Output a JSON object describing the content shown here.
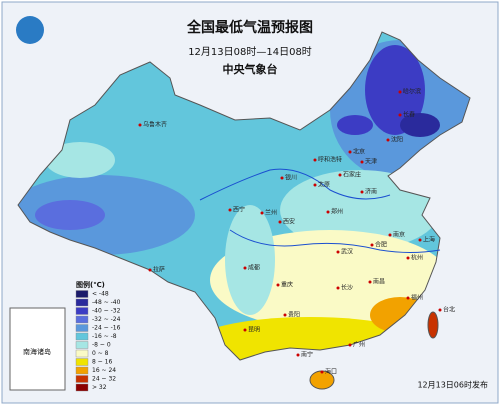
{
  "header": {
    "title": "全国最低气温预报图",
    "period": "12月13日08时—14日08时",
    "issuer": "中央气象台"
  },
  "legend": {
    "title": "图例(℃)",
    "items": [
      {
        "label": "< -48",
        "color": "#1c1c6a"
      },
      {
        "label": "-48 ~ -40",
        "color": "#2a2a9c"
      },
      {
        "label": "-40 ~ -32",
        "color": "#3c3cc4"
      },
      {
        "label": "-32 ~ -24",
        "color": "#5a6ede"
      },
      {
        "label": "-24 ~ -16",
        "color": "#5a98dc"
      },
      {
        "label": "-16 ~ -8",
        "color": "#62c6dc"
      },
      {
        "label": "-8 ~ 0",
        "color": "#a6e6e4"
      },
      {
        "label": "0 ~ 8",
        "color": "#fafac6"
      },
      {
        "label": "8 ~ 16",
        "color": "#f0e400"
      },
      {
        "label": "16 ~ 24",
        "color": "#f2a200"
      },
      {
        "label": "24 ~ 32",
        "color": "#c83200"
      },
      {
        "label": "> 32",
        "color": "#8c0000"
      }
    ]
  },
  "cities": [
    "乌鲁木齐",
    "拉萨",
    "西宁",
    "兰州",
    "银川",
    "呼和浩特",
    "北京",
    "天津",
    "石家庄",
    "太原",
    "济南",
    "郑州",
    "西安",
    "成都",
    "重庆",
    "武汉",
    "合肥",
    "南京",
    "上海",
    "杭州",
    "长沙",
    "南昌",
    "福州",
    "贵阳",
    "昆明",
    "南宁",
    "广州",
    "海口",
    "台北",
    "哈尔滨",
    "长春",
    "沈阳"
  ],
  "inset": {
    "label": "南海诸岛"
  },
  "footer": "12月13日06时发布"
}
